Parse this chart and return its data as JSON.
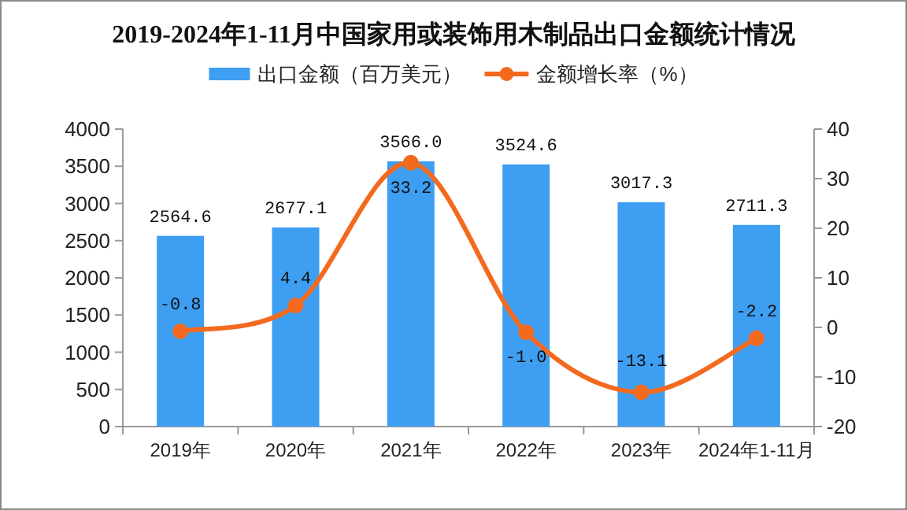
{
  "chart_data": {
    "type": "bar",
    "title": "2019-2024年1-11月中国家用或装饰用木制品出口金额统计情况",
    "categories": [
      "2019年",
      "2020年",
      "2021年",
      "2022年",
      "2023年",
      "2024年1-11月"
    ],
    "series": [
      {
        "name": "出口金额（百万美元）",
        "color": "#3e9ef2",
        "values": [
          2564.6,
          2677.1,
          3566.0,
          3524.6,
          3017.3,
          2711.3
        ],
        "value_labels": [
          "2564.6",
          "2677.1",
          "3566.0",
          "3524.6",
          "3017.3",
          "2711.3"
        ]
      },
      {
        "name": "金额增长率（%）",
        "type": "line",
        "axis": "y2",
        "color": "#f36a1e",
        "marker": "circle",
        "values": [
          -0.8,
          4.4,
          33.2,
          -1.0,
          -13.1,
          -2.2
        ],
        "value_labels": [
          "-0.8",
          "4.4",
          "33.2",
          "-1.0",
          "-13.1",
          "-2.2"
        ]
      }
    ],
    "ylim": [
      0,
      4000
    ],
    "yticks": [
      0,
      500,
      1000,
      1500,
      2000,
      2500,
      3000,
      3500,
      4000
    ],
    "y2lim": [
      -20,
      40
    ],
    "y2ticks": [
      -20,
      -10,
      0,
      10,
      20,
      30,
      40
    ],
    "legend": "top"
  }
}
